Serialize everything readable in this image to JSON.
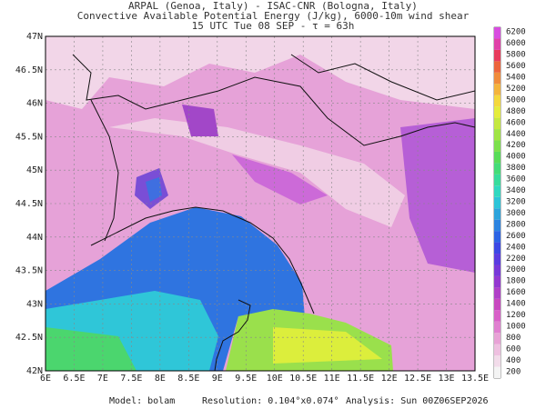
{
  "header": {
    "line1": "ARPAL (Genoa, Italy)  -  ISAC-CNR (Bologna, Italy)",
    "line2": "Convective Available Potential Energy (J/kg), 6000-10m wind shear",
    "line3": "15 UTC Tue 08 SEP  -  τ = 63h"
  },
  "map": {
    "lat_labels": [
      "47N",
      "46.5N",
      "46N",
      "45.5N",
      "45N",
      "44.5N",
      "44N",
      "43.5N",
      "43N",
      "42.5N",
      "42N"
    ],
    "lon_labels": [
      "6E",
      "6.5E",
      "7E",
      "7.5E",
      "8E",
      "8.5E",
      "9E",
      "9.5E",
      "10E",
      "10.5E",
      "11E",
      "11.5E",
      "12E",
      "12.5E",
      "13E",
      "13.5E"
    ]
  },
  "colorbar": {
    "levels": [
      200,
      400,
      600,
      800,
      1000,
      1200,
      1400,
      1600,
      1800,
      2000,
      2200,
      2400,
      2600,
      2800,
      3000,
      3200,
      3400,
      3600,
      3800,
      4000,
      4200,
      4400,
      4600,
      4800,
      5000,
      5200,
      5400,
      5600,
      5800,
      6000,
      6200
    ]
  },
  "footer": {
    "model": "Model: bolam",
    "resolution": "Resolution: 0.104°x0.074°",
    "analysis": "Analysis: Sun 00Z06SEP2026"
  }
}
